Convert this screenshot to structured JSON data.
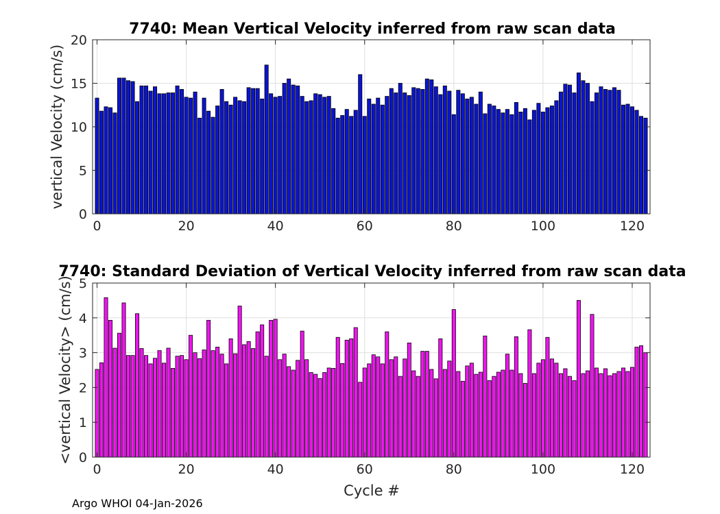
{
  "chart_data": [
    {
      "type": "bar",
      "title": "7740: Mean Vertical Velocity inferred from raw scan data",
      "xlabel": "",
      "ylabel": "vertical Velocity (cm/s)",
      "xlim": [
        -1,
        124
      ],
      "ylim": [
        0,
        20
      ],
      "xticks": [
        0,
        20,
        40,
        60,
        80,
        100,
        120
      ],
      "yticks": [
        0,
        5,
        10,
        15,
        20
      ],
      "grid": true,
      "bar_color": "#0a14d2",
      "x_start": 0,
      "values": [
        13.3,
        11.8,
        12.3,
        12.2,
        11.6,
        15.6,
        15.6,
        15.3,
        15.2,
        12.9,
        14.7,
        14.7,
        14.1,
        14.6,
        13.8,
        13.8,
        13.9,
        13.9,
        14.7,
        14.3,
        13.4,
        13.3,
        14.0,
        11.0,
        13.3,
        11.8,
        11.1,
        12.4,
        14.3,
        12.9,
        12.5,
        13.4,
        13.0,
        12.9,
        14.5,
        14.4,
        14.4,
        13.2,
        17.1,
        13.8,
        13.4,
        13.5,
        15.0,
        15.5,
        14.8,
        14.7,
        13.5,
        12.9,
        13.0,
        13.8,
        13.7,
        13.4,
        13.5,
        12.1,
        11.0,
        11.3,
        12.0,
        11.2,
        11.9,
        16.0,
        11.2,
        13.2,
        12.6,
        13.3,
        12.5,
        13.5,
        14.4,
        13.9,
        15.0,
        13.9,
        13.6,
        14.5,
        14.4,
        14.3,
        15.5,
        15.4,
        14.6,
        13.7,
        14.7,
        14.1,
        11.4,
        14.2,
        13.8,
        13.2,
        13.4,
        12.6,
        14.0,
        11.5,
        12.6,
        12.4,
        12.0,
        11.6,
        12.0,
        11.4,
        12.8,
        11.7,
        12.1,
        10.8,
        11.9,
        12.7,
        11.7,
        12.2,
        12.4,
        13.0,
        14.0,
        14.9,
        14.8,
        13.9,
        16.2,
        15.3,
        15.0,
        12.9,
        13.9,
        14.6,
        14.3,
        14.2,
        14.5,
        14.2,
        12.5,
        12.6,
        12.3,
        11.9,
        11.2,
        11.0
      ]
    },
    {
      "type": "bar",
      "title": "7740: Standard Deviation of Vertical Velocity inferred from raw scan data",
      "xlabel": "Cycle #",
      "ylabel": "<vertical Velocity> (cm/s)",
      "xlim": [
        -1,
        124
      ],
      "ylim": [
        0,
        5
      ],
      "xticks": [
        0,
        20,
        40,
        60,
        80,
        100,
        120
      ],
      "yticks": [
        0,
        1,
        2,
        3,
        4,
        5
      ],
      "grid": true,
      "bar_color": "#f014f0",
      "x_start": 0,
      "values": [
        2.52,
        2.71,
        4.58,
        3.93,
        3.13,
        3.56,
        4.43,
        2.92,
        2.92,
        4.12,
        3.12,
        2.92,
        2.68,
        2.84,
        3.06,
        2.7,
        3.13,
        2.55,
        2.9,
        2.92,
        2.8,
        3.5,
        3.0,
        2.83,
        3.08,
        3.93,
        3.06,
        3.16,
        2.96,
        2.68,
        3.4,
        2.97,
        4.34,
        3.23,
        3.32,
        3.12,
        3.6,
        3.8,
        2.9,
        3.93,
        3.96,
        2.8,
        2.96,
        2.6,
        2.5,
        2.78,
        3.62,
        2.8,
        2.43,
        2.38,
        2.26,
        2.43,
        2.56,
        2.55,
        3.44,
        2.69,
        3.36,
        3.4,
        3.72,
        2.15,
        2.56,
        2.68,
        2.94,
        2.88,
        2.68,
        3.6,
        2.8,
        2.88,
        2.32,
        2.82,
        3.28,
        2.48,
        2.32,
        3.04,
        3.04,
        2.52,
        2.25,
        3.4,
        2.52,
        2.76,
        4.24,
        2.46,
        2.18,
        2.62,
        2.7,
        2.38,
        2.44,
        3.48,
        2.2,
        2.32,
        2.44,
        2.5,
        2.96,
        2.5,
        3.46,
        2.4,
        2.12,
        3.66,
        2.4,
        2.7,
        2.8,
        3.44,
        2.82,
        2.7,
        2.4,
        2.54,
        2.32,
        2.2,
        4.5,
        2.4,
        2.48,
        4.1,
        2.56,
        2.4,
        2.54,
        2.34,
        2.4,
        2.46,
        2.56,
        2.46,
        2.58,
        3.16,
        3.2,
        3.0
      ]
    }
  ],
  "footer": "Argo WHOI 04-Jan-2026"
}
